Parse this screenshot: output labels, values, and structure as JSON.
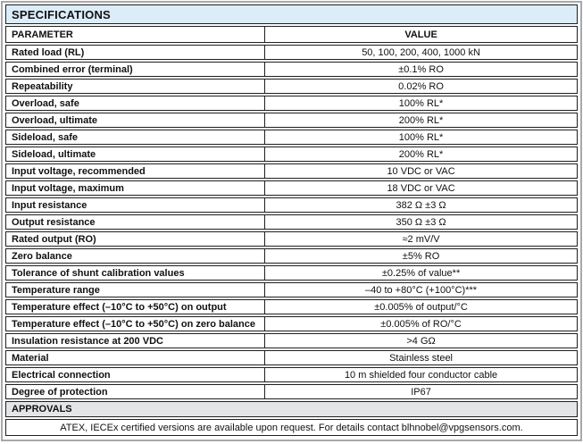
{
  "table": {
    "title": "SPECIFICATIONS",
    "columns": {
      "parameter": "PARAMETER",
      "value": "VALUE"
    },
    "rows": [
      {
        "parameter": "Rated load (RL)",
        "value": "50, 100, 200, 400, 1000 kN"
      },
      {
        "parameter": "Combined error (terminal)",
        "value": "±0.1% RO"
      },
      {
        "parameter": "Repeatability",
        "value": "0.02% RO"
      },
      {
        "parameter": "Overload, safe",
        "value": "100% RL*"
      },
      {
        "parameter": "Overload, ultimate",
        "value": "200% RL*"
      },
      {
        "parameter": "Sideload, safe",
        "value": "100% RL*"
      },
      {
        "parameter": "Sideload, ultimate",
        "value": "200% RL*"
      },
      {
        "parameter": "Input voltage, recommended",
        "value": "10 VDC or VAC"
      },
      {
        "parameter": "Input voltage, maximum",
        "value": "18 VDC or VAC"
      },
      {
        "parameter": "Input resistance",
        "value": "382 Ω ±3 Ω"
      },
      {
        "parameter": "Output resistance",
        "value": "350 Ω ±3 Ω"
      },
      {
        "parameter": "Rated output (RO)",
        "value": "≈2 mV/V"
      },
      {
        "parameter": "Zero balance",
        "value": "±5% RO"
      },
      {
        "parameter": "Tolerance of shunt calibration values",
        "value": "±0.25% of value**"
      },
      {
        "parameter": "Temperature range",
        "value": "–40 to +80°C (+100°C)***"
      },
      {
        "parameter": "Temperature effect (–10°C to +50°C) on output",
        "value": "±0.005% of output/°C"
      },
      {
        "parameter": "Temperature effect (–10°C to +50°C) on zero balance",
        "value": "±0.005% of RO/°C"
      },
      {
        "parameter": "Insulation resistance at 200 VDC",
        "value": ">4 GΩ"
      },
      {
        "parameter": "Material",
        "value": "Stainless steel"
      },
      {
        "parameter": "Electrical connection",
        "value": "10 m shielded four conductor cable"
      },
      {
        "parameter": "Degree of protection",
        "value": "IP67"
      }
    ],
    "approvals": {
      "label": "APPROVALS",
      "note": "ATEX, IECEx certified versions are available upon request. For details contact blhnobel@vpgsensors.com."
    },
    "colors": {
      "banner_bg": "#dcedf9",
      "approvals_bg": "#e4e5e7",
      "cell_border": "#1f1f1f",
      "outer_border": "#a6a8aa",
      "text": "#111111"
    }
  }
}
